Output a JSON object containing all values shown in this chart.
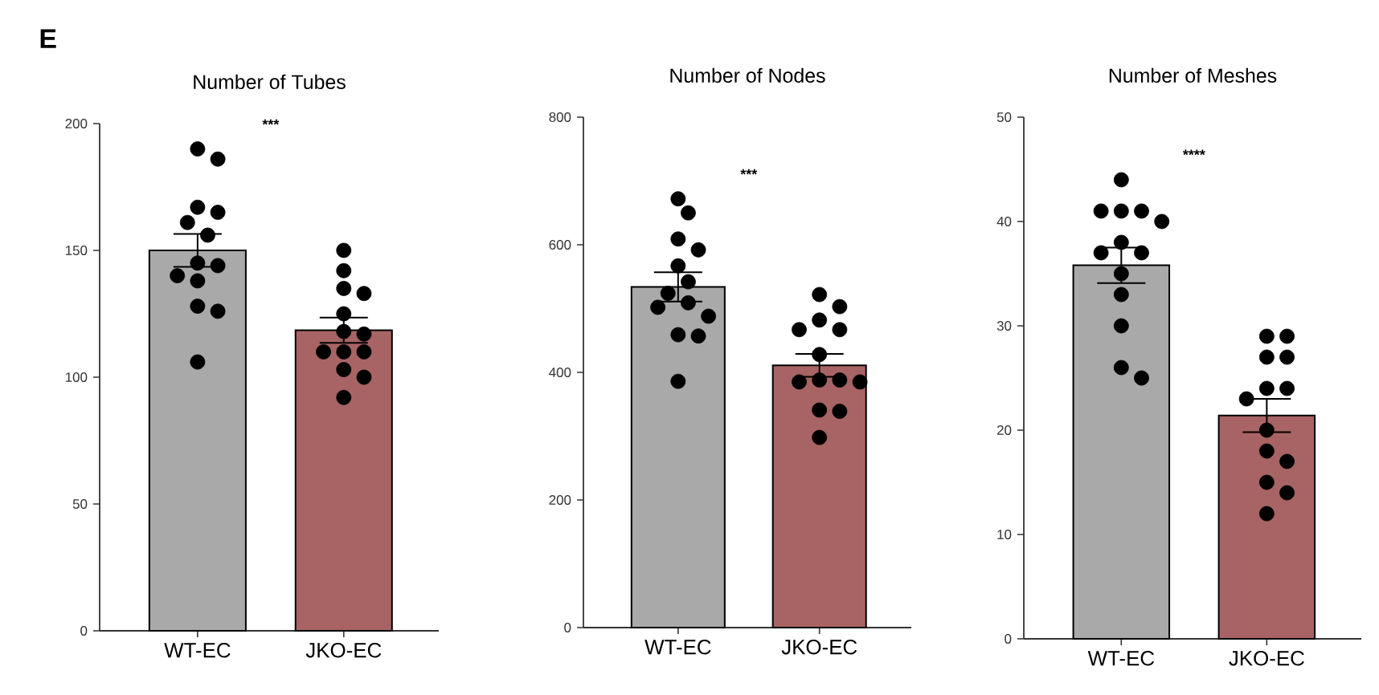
{
  "chart_data": [
    {
      "type": "bar",
      "title": "Number of Tubes",
      "categories": [
        "WT-EC",
        "JKO-EC"
      ],
      "ylim": [
        0,
        200
      ],
      "yticks": [
        0,
        50,
        100,
        150,
        200
      ],
      "marker": "circle",
      "annotations": [
        "E",
        "***"
      ],
      "series": [
        {
          "values": [
            150,
            118.5
          ],
          "errors": [
            6.5,
            5
          ],
          "colors": [
            "#a9a9a9",
            "#a86464"
          ]
        },
        {
          "type": "scatter",
          "color": "#000000",
          "x": [
            "WT-EC",
            "WT-EC",
            "WT-EC",
            "WT-EC",
            "WT-EC",
            "WT-EC",
            "WT-EC",
            "WT-EC",
            "WT-EC",
            "WT-EC",
            "WT-EC",
            "WT-EC",
            "WT-EC",
            "JKO-EC",
            "JKO-EC",
            "JKO-EC",
            "JKO-EC",
            "JKO-EC",
            "JKO-EC",
            "JKO-EC",
            "JKO-EC",
            "JKO-EC",
            "JKO-EC",
            "JKO-EC",
            "JKO-EC",
            "JKO-EC"
          ],
          "values": [
            190,
            186,
            167,
            165,
            161,
            156,
            145,
            144,
            140,
            138,
            128,
            126,
            106,
            150,
            142,
            135,
            133,
            125,
            118,
            117,
            110,
            110,
            110,
            103,
            100,
            92
          ]
        }
      ]
    },
    {
      "type": "bar",
      "title": "Number of Nodes",
      "categories": [
        "WT-EC",
        "JKO-EC"
      ],
      "ylim": [
        0,
        800
      ],
      "yticks": [
        0,
        200,
        400,
        600,
        800
      ],
      "marker": "circle",
      "annotations": [
        "***"
      ],
      "series": [
        {
          "values": [
            534,
            411
          ],
          "errors": [
            23,
            18
          ],
          "colors": [
            "#a9a9a9",
            "#a86464"
          ]
        },
        {
          "type": "scatter",
          "color": "#000000",
          "x": [
            "WT-EC",
            "WT-EC",
            "WT-EC",
            "WT-EC",
            "WT-EC",
            "WT-EC",
            "WT-EC",
            "WT-EC",
            "WT-EC",
            "WT-EC",
            "WT-EC",
            "WT-EC",
            "WT-EC",
            "JKO-EC",
            "JKO-EC",
            "JKO-EC",
            "JKO-EC",
            "JKO-EC",
            "JKO-EC",
            "JKO-EC",
            "JKO-EC",
            "JKO-EC",
            "JKO-EC",
            "JKO-EC",
            "JKO-EC",
            "JKO-EC"
          ],
          "values": [
            672,
            650,
            609,
            592,
            567,
            542,
            524,
            509,
            502,
            488,
            459,
            457,
            386,
            522,
            503,
            482,
            467,
            467,
            428,
            388,
            388,
            385,
            385,
            341,
            339,
            298
          ]
        }
      ]
    },
    {
      "type": "bar",
      "title": "Number of Meshes",
      "categories": [
        "WT-EC",
        "JKO-EC"
      ],
      "ylim": [
        0,
        50
      ],
      "yticks": [
        0,
        10,
        20,
        30,
        40,
        50
      ],
      "marker": "circle",
      "annotations": [
        "****"
      ],
      "series": [
        {
          "values": [
            35.8,
            21.4
          ],
          "errors": [
            1.7,
            1.6
          ],
          "colors": [
            "#a9a9a9",
            "#a86464"
          ]
        },
        {
          "type": "scatter",
          "color": "#000000",
          "x": [
            "WT-EC",
            "WT-EC",
            "WT-EC",
            "WT-EC",
            "WT-EC",
            "WT-EC",
            "WT-EC",
            "WT-EC",
            "WT-EC",
            "WT-EC",
            "WT-EC",
            "WT-EC",
            "WT-EC",
            "JKO-EC",
            "JKO-EC",
            "JKO-EC",
            "JKO-EC",
            "JKO-EC",
            "JKO-EC",
            "JKO-EC",
            "JKO-EC",
            "JKO-EC",
            "JKO-EC",
            "JKO-EC",
            "JKO-EC",
            "JKO-EC"
          ],
          "values": [
            44,
            41,
            41,
            41,
            40,
            38,
            37,
            37,
            35,
            33,
            30,
            26,
            25,
            29,
            29,
            27,
            27,
            24,
            24,
            23,
            20,
            18,
            17,
            15,
            14,
            12
          ]
        }
      ]
    }
  ]
}
